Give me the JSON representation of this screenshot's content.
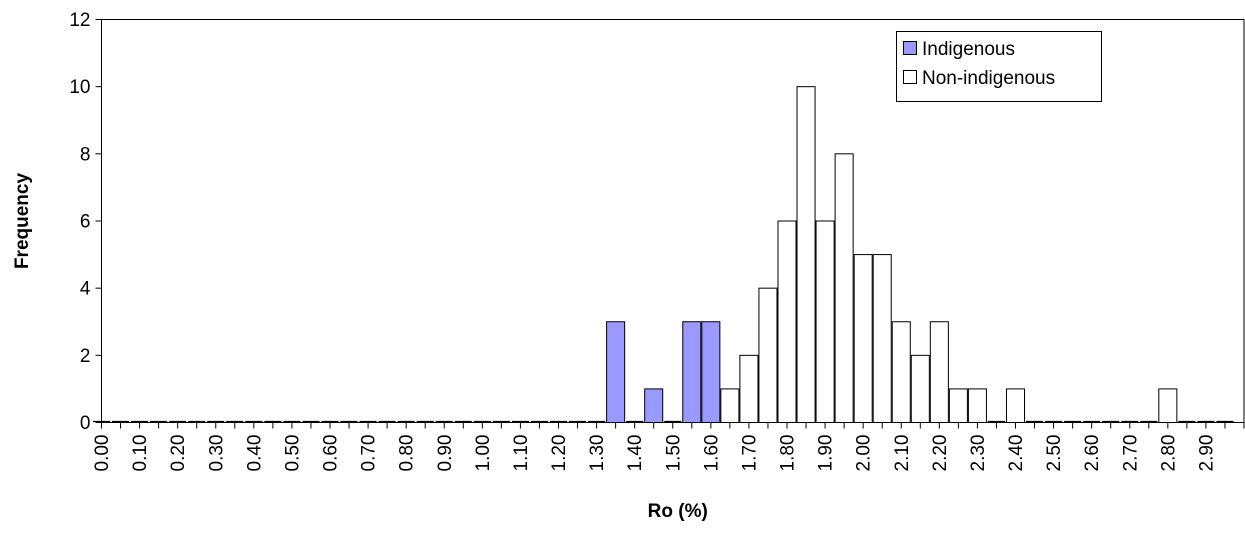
{
  "chart_data": {
    "type": "bar",
    "xlabel": "Ro (%)",
    "ylabel": "Frequency",
    "ylim": [
      0,
      12
    ],
    "yticks": [
      "0",
      "2",
      "4",
      "6",
      "8",
      "10",
      "12"
    ],
    "xticks": [
      "0.00",
      "0.10",
      "0.20",
      "0.30",
      "0.40",
      "0.50",
      "0.60",
      "0.70",
      "0.80",
      "0.90",
      "1.00",
      "1.10",
      "1.20",
      "1.30",
      "1.40",
      "1.50",
      "1.60",
      "1.70",
      "1.80",
      "1.90",
      "2.00",
      "2.10",
      "2.20",
      "2.30",
      "2.40",
      "2.50",
      "2.60",
      "2.70",
      "2.80",
      "2.90"
    ],
    "bin_width": 0.05,
    "legend_position": "top-right",
    "grid": false,
    "series": [
      {
        "name": "Indigenous",
        "color": "#9999ff",
        "bars": [
          {
            "x": 1.35,
            "value": 3
          },
          {
            "x": 1.45,
            "value": 1
          },
          {
            "x": 1.55,
            "value": 3
          },
          {
            "x": 1.6,
            "value": 3
          }
        ]
      },
      {
        "name": "Non-indigenous",
        "color": "#ffffff",
        "bars": [
          {
            "x": 1.65,
            "value": 1
          },
          {
            "x": 1.7,
            "value": 2
          },
          {
            "x": 1.75,
            "value": 4
          },
          {
            "x": 1.8,
            "value": 6
          },
          {
            "x": 1.85,
            "value": 10
          },
          {
            "x": 1.9,
            "value": 6
          },
          {
            "x": 1.95,
            "value": 8
          },
          {
            "x": 2.0,
            "value": 5
          },
          {
            "x": 2.05,
            "value": 5
          },
          {
            "x": 2.1,
            "value": 3
          },
          {
            "x": 2.15,
            "value": 2
          },
          {
            "x": 2.2,
            "value": 3
          },
          {
            "x": 2.25,
            "value": 1
          },
          {
            "x": 2.3,
            "value": 1
          },
          {
            "x": 2.4,
            "value": 1
          },
          {
            "x": 2.8,
            "value": 1
          }
        ]
      }
    ]
  }
}
